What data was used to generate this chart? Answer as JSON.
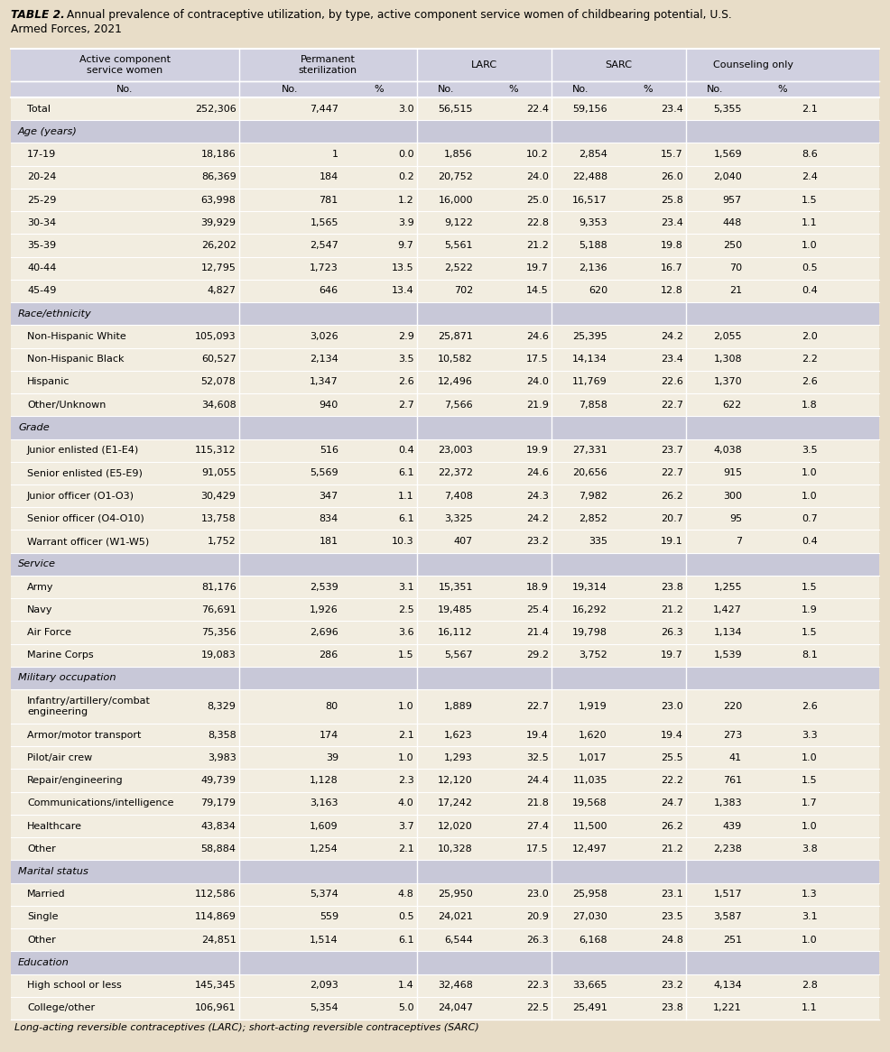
{
  "title_bold": "TABLE 2.",
  "title_rest": " Annual prevalence of contraceptive utilization, by type, active component service women of childbearing potential, U.S.\nArmed Forces, 2021",
  "footnote": "Long-acting reversible contraceptives (LARC); short-acting reversible contraceptives (SARC)",
  "col_groups": [
    {
      "label": "Active component\nservice women",
      "cols": [
        0,
        1
      ]
    },
    {
      "label": "Permanent\nsterilization",
      "cols": [
        1,
        3
      ]
    },
    {
      "label": "LARC",
      "cols": [
        3,
        5
      ]
    },
    {
      "label": "SARC",
      "cols": [
        5,
        7
      ]
    },
    {
      "label": "Counseling only",
      "cols": [
        7,
        9
      ]
    }
  ],
  "subheaders": [
    "No.",
    "No.",
    "%",
    "No.",
    "%",
    "No.",
    "%",
    "No.",
    "%"
  ],
  "rows": [
    {
      "label": "Total",
      "values": [
        "252,306",
        "7,447",
        "3.0",
        "56,515",
        "22.4",
        "59,156",
        "23.4",
        "5,355",
        "2.1"
      ],
      "type": "total"
    },
    {
      "label": "Age (years)",
      "values": [],
      "type": "section"
    },
    {
      "label": "17-19",
      "values": [
        "18,186",
        "1",
        "0.0",
        "1,856",
        "10.2",
        "2,854",
        "15.7",
        "1,569",
        "8.6"
      ],
      "type": "data"
    },
    {
      "label": "20-24",
      "values": [
        "86,369",
        "184",
        "0.2",
        "20,752",
        "24.0",
        "22,488",
        "26.0",
        "2,040",
        "2.4"
      ],
      "type": "data"
    },
    {
      "label": "25-29",
      "values": [
        "63,998",
        "781",
        "1.2",
        "16,000",
        "25.0",
        "16,517",
        "25.8",
        "957",
        "1.5"
      ],
      "type": "data"
    },
    {
      "label": "30-34",
      "values": [
        "39,929",
        "1,565",
        "3.9",
        "9,122",
        "22.8",
        "9,353",
        "23.4",
        "448",
        "1.1"
      ],
      "type": "data"
    },
    {
      "label": "35-39",
      "values": [
        "26,202",
        "2,547",
        "9.7",
        "5,561",
        "21.2",
        "5,188",
        "19.8",
        "250",
        "1.0"
      ],
      "type": "data"
    },
    {
      "label": "40-44",
      "values": [
        "12,795",
        "1,723",
        "13.5",
        "2,522",
        "19.7",
        "2,136",
        "16.7",
        "70",
        "0.5"
      ],
      "type": "data"
    },
    {
      "label": "45-49",
      "values": [
        "4,827",
        "646",
        "13.4",
        "702",
        "14.5",
        "620",
        "12.8",
        "21",
        "0.4"
      ],
      "type": "data"
    },
    {
      "label": "Race/ethnicity",
      "values": [],
      "type": "section"
    },
    {
      "label": "Non-Hispanic White",
      "values": [
        "105,093",
        "3,026",
        "2.9",
        "25,871",
        "24.6",
        "25,395",
        "24.2",
        "2,055",
        "2.0"
      ],
      "type": "data"
    },
    {
      "label": "Non-Hispanic Black",
      "values": [
        "60,527",
        "2,134",
        "3.5",
        "10,582",
        "17.5",
        "14,134",
        "23.4",
        "1,308",
        "2.2"
      ],
      "type": "data"
    },
    {
      "label": "Hispanic",
      "values": [
        "52,078",
        "1,347",
        "2.6",
        "12,496",
        "24.0",
        "11,769",
        "22.6",
        "1,370",
        "2.6"
      ],
      "type": "data"
    },
    {
      "label": "Other/Unknown",
      "values": [
        "34,608",
        "940",
        "2.7",
        "7,566",
        "21.9",
        "7,858",
        "22.7",
        "622",
        "1.8"
      ],
      "type": "data"
    },
    {
      "label": "Grade",
      "values": [],
      "type": "section"
    },
    {
      "label": "Junior enlisted (E1-E4)",
      "values": [
        "115,312",
        "516",
        "0.4",
        "23,003",
        "19.9",
        "27,331",
        "23.7",
        "4,038",
        "3.5"
      ],
      "type": "data"
    },
    {
      "label": "Senior enlisted (E5-E9)",
      "values": [
        "91,055",
        "5,569",
        "6.1",
        "22,372",
        "24.6",
        "20,656",
        "22.7",
        "915",
        "1.0"
      ],
      "type": "data"
    },
    {
      "label": "Junior officer (O1-O3)",
      "values": [
        "30,429",
        "347",
        "1.1",
        "7,408",
        "24.3",
        "7,982",
        "26.2",
        "300",
        "1.0"
      ],
      "type": "data"
    },
    {
      "label": "Senior officer (O4-O10)",
      "values": [
        "13,758",
        "834",
        "6.1",
        "3,325",
        "24.2",
        "2,852",
        "20.7",
        "95",
        "0.7"
      ],
      "type": "data"
    },
    {
      "label": "Warrant officer (W1-W5)",
      "values": [
        "1,752",
        "181",
        "10.3",
        "407",
        "23.2",
        "335",
        "19.1",
        "7",
        "0.4"
      ],
      "type": "data"
    },
    {
      "label": "Service",
      "values": [],
      "type": "section"
    },
    {
      "label": "Army",
      "values": [
        "81,176",
        "2,539",
        "3.1",
        "15,351",
        "18.9",
        "19,314",
        "23.8",
        "1,255",
        "1.5"
      ],
      "type": "data"
    },
    {
      "label": "Navy",
      "values": [
        "76,691",
        "1,926",
        "2.5",
        "19,485",
        "25.4",
        "16,292",
        "21.2",
        "1,427",
        "1.9"
      ],
      "type": "data"
    },
    {
      "label": "Air Force",
      "values": [
        "75,356",
        "2,696",
        "3.6",
        "16,112",
        "21.4",
        "19,798",
        "26.3",
        "1,134",
        "1.5"
      ],
      "type": "data"
    },
    {
      "label": "Marine Corps",
      "values": [
        "19,083",
        "286",
        "1.5",
        "5,567",
        "29.2",
        "3,752",
        "19.7",
        "1,539",
        "8.1"
      ],
      "type": "data"
    },
    {
      "label": "Military occupation",
      "values": [],
      "type": "section"
    },
    {
      "label": "Infantry/artillery/combat\nengineering",
      "values": [
        "8,329",
        "80",
        "1.0",
        "1,889",
        "22.7",
        "1,919",
        "23.0",
        "220",
        "2.6"
      ],
      "type": "data2"
    },
    {
      "label": "Armor/motor transport",
      "values": [
        "8,358",
        "174",
        "2.1",
        "1,623",
        "19.4",
        "1,620",
        "19.4",
        "273",
        "3.3"
      ],
      "type": "data"
    },
    {
      "label": "Pilot/air crew",
      "values": [
        "3,983",
        "39",
        "1.0",
        "1,293",
        "32.5",
        "1,017",
        "25.5",
        "41",
        "1.0"
      ],
      "type": "data"
    },
    {
      "label": "Repair/engineering",
      "values": [
        "49,739",
        "1,128",
        "2.3",
        "12,120",
        "24.4",
        "11,035",
        "22.2",
        "761",
        "1.5"
      ],
      "type": "data"
    },
    {
      "label": "Communications/intelligence",
      "values": [
        "79,179",
        "3,163",
        "4.0",
        "17,242",
        "21.8",
        "19,568",
        "24.7",
        "1,383",
        "1.7"
      ],
      "type": "data"
    },
    {
      "label": "Healthcare",
      "values": [
        "43,834",
        "1,609",
        "3.7",
        "12,020",
        "27.4",
        "11,500",
        "26.2",
        "439",
        "1.0"
      ],
      "type": "data"
    },
    {
      "label": "Other",
      "values": [
        "58,884",
        "1,254",
        "2.1",
        "10,328",
        "17.5",
        "12,497",
        "21.2",
        "2,238",
        "3.8"
      ],
      "type": "data"
    },
    {
      "label": "Marital status",
      "values": [],
      "type": "section"
    },
    {
      "label": "Married",
      "values": [
        "112,586",
        "5,374",
        "4.8",
        "25,950",
        "23.0",
        "25,958",
        "23.1",
        "1,517",
        "1.3"
      ],
      "type": "data"
    },
    {
      "label": "Single",
      "values": [
        "114,869",
        "559",
        "0.5",
        "24,021",
        "20.9",
        "27,030",
        "23.5",
        "3,587",
        "3.1"
      ],
      "type": "data"
    },
    {
      "label": "Other",
      "values": [
        "24,851",
        "1,514",
        "6.1",
        "6,544",
        "26.3",
        "6,168",
        "24.8",
        "251",
        "1.0"
      ],
      "type": "data"
    },
    {
      "label": "Education",
      "values": [],
      "type": "section"
    },
    {
      "label": "High school or less",
      "values": [
        "145,345",
        "2,093",
        "1.4",
        "32,468",
        "22.3",
        "33,665",
        "23.2",
        "4,134",
        "2.8"
      ],
      "type": "data"
    },
    {
      "label": "College/other",
      "values": [
        "106,961",
        "5,354",
        "5.0",
        "24,047",
        "22.5",
        "25,491",
        "23.8",
        "1,221",
        "1.1"
      ],
      "type": "data"
    }
  ],
  "page_bg": "#e8ddc8",
  "header_bg": "#d0d0e0",
  "section_bg": "#c8c8d8",
  "data_bg": "#f2ede0",
  "white_line": "#ffffff",
  "text_color": "#000000"
}
